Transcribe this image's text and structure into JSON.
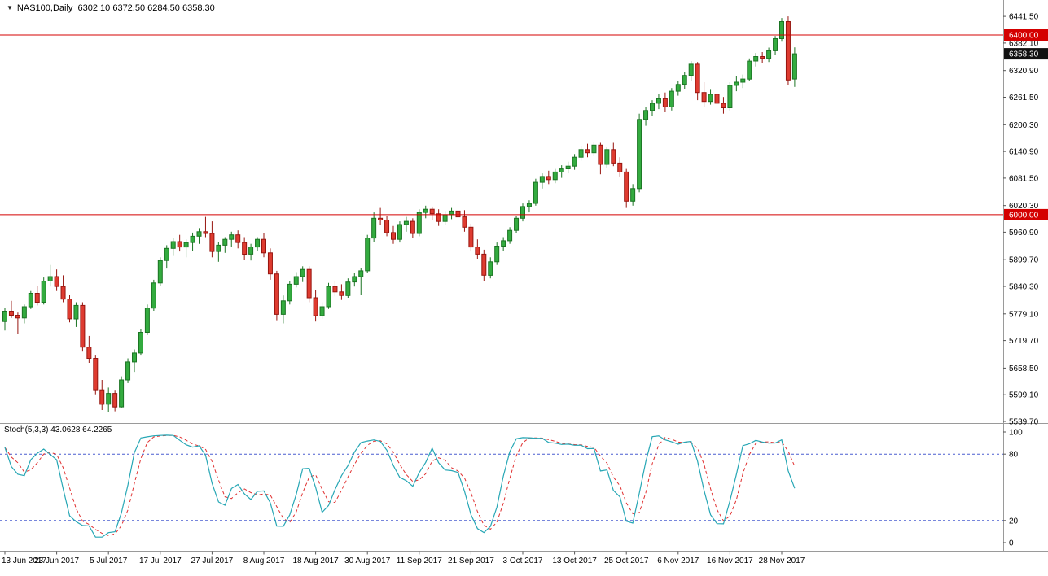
{
  "header": {
    "dropdown_icon": "▼",
    "symbol": "NAS100",
    "period": "Daily",
    "text": "NAS100,Daily  6302.10 6372.50 6284.50 6358.30",
    "open": "6302.10",
    "high": "6372.50",
    "low": "6284.50",
    "close": "6358.30"
  },
  "indicator": {
    "label": "Stoch(5,3,3) 43.0628 64.2265",
    "name": "Stoch",
    "params": "5,3,3",
    "k_value": "43.0628",
    "d_value": "64.2265",
    "range": [
      0,
      100
    ],
    "levels": [
      80,
      20
    ],
    "scale": [
      {
        "v": 100,
        "label": "100"
      },
      {
        "v": 80,
        "label": "80"
      },
      {
        "v": 20,
        "label": "20"
      },
      {
        "v": 0,
        "label": "0"
      }
    ]
  },
  "chart_data": {
    "type": "candlestick",
    "title": "NAS100,Daily  6302.10 6372.50 6284.50 6358.30",
    "symbol": "NAS100",
    "timeframe": "Daily",
    "ylim": [
      5536,
      6449
    ],
    "grid": false,
    "hlines": [
      {
        "price": 6400.0,
        "label": "6400.00"
      },
      {
        "price": 6000.0,
        "label": "6000.00"
      }
    ],
    "y_axis": {
      "ticks": [
        {
          "price": 6441.5,
          "label": "6441.50"
        },
        {
          "price": 6382.1,
          "label": "6382.10"
        },
        {
          "price": 6320.9,
          "label": "6320.90"
        },
        {
          "price": 6261.5,
          "label": "6261.50"
        },
        {
          "price": 6200.3,
          "label": "6200.30"
        },
        {
          "price": 6140.9,
          "label": "6140.90"
        },
        {
          "price": 6081.5,
          "label": "6081.50"
        },
        {
          "price": 6020.3,
          "label": "6020.30"
        },
        {
          "price": 5960.9,
          "label": "5960.90"
        },
        {
          "price": 5899.7,
          "label": "5899.70"
        },
        {
          "price": 5840.3,
          "label": "5840.30"
        },
        {
          "price": 5779.1,
          "label": "5779.10"
        },
        {
          "price": 5719.7,
          "label": "5719.70"
        },
        {
          "price": 5658.5,
          "label": "5658.50"
        },
        {
          "price": 5599.1,
          "label": "5599.10"
        },
        {
          "price": 5539.7,
          "label": "5539.70"
        }
      ],
      "badges": [
        {
          "price": 6400.0,
          "label": "6400.00",
          "style": "level"
        },
        {
          "price": 6358.3,
          "label": "6358.30",
          "style": "current"
        },
        {
          "price": 6000.0,
          "label": "6000.00",
          "style": "level"
        }
      ]
    },
    "x_labels": [
      [
        0,
        "13 Jun 2017"
      ],
      [
        8,
        "23 Jun 2017"
      ],
      [
        16,
        "5 Jul 2017"
      ],
      [
        24,
        "17 Jul 2017"
      ],
      [
        32,
        "27 Jul 2017"
      ],
      [
        40,
        "8 Aug 2017"
      ],
      [
        48,
        "18 Aug 2017"
      ],
      [
        56,
        "30 Aug 2017"
      ],
      [
        64,
        "11 Sep 2017"
      ],
      [
        72,
        "21 Sep 2017"
      ],
      [
        80,
        "3 Oct 2017"
      ],
      [
        88,
        "13 Oct 2017"
      ],
      [
        96,
        "25 Oct 2017"
      ],
      [
        104,
        "6 Nov 2017"
      ],
      [
        112,
        "16 Nov 2017"
      ],
      [
        120,
        "28 Nov 2017"
      ]
    ],
    "candles": [
      [
        5762,
        5792,
        5742,
        5785
      ],
      [
        5785,
        5808,
        5770,
        5776
      ],
      [
        5776,
        5782,
        5735,
        5770
      ],
      [
        5770,
        5800,
        5758,
        5795
      ],
      [
        5795,
        5830,
        5790,
        5825
      ],
      [
        5825,
        5842,
        5798,
        5805
      ],
      [
        5805,
        5860,
        5800,
        5852
      ],
      [
        5852,
        5888,
        5840,
        5862
      ],
      [
        5862,
        5878,
        5830,
        5840
      ],
      [
        5840,
        5865,
        5805,
        5812
      ],
      [
        5812,
        5822,
        5760,
        5768
      ],
      [
        5768,
        5805,
        5750,
        5798
      ],
      [
        5798,
        5805,
        5695,
        5705
      ],
      [
        5705,
        5730,
        5670,
        5680
      ],
      [
        5680,
        5688,
        5600,
        5610
      ],
      [
        5610,
        5632,
        5565,
        5578
      ],
      [
        5578,
        5615,
        5560,
        5602
      ],
      [
        5602,
        5610,
        5562,
        5572
      ],
      [
        5572,
        5640,
        5570,
        5632
      ],
      [
        5632,
        5680,
        5625,
        5672
      ],
      [
        5672,
        5700,
        5650,
        5692
      ],
      [
        5692,
        5745,
        5688,
        5738
      ],
      [
        5738,
        5800,
        5732,
        5792
      ],
      [
        5792,
        5855,
        5786,
        5848
      ],
      [
        5848,
        5905,
        5842,
        5898
      ],
      [
        5898,
        5932,
        5880,
        5925
      ],
      [
        5925,
        5948,
        5908,
        5940
      ],
      [
        5940,
        5955,
        5918,
        5928
      ],
      [
        5928,
        5945,
        5905,
        5938
      ],
      [
        5938,
        5960,
        5920,
        5952
      ],
      [
        5952,
        5970,
        5935,
        5962
      ],
      [
        5962,
        5995,
        5950,
        5958
      ],
      [
        5958,
        5985,
        5905,
        5918
      ],
      [
        5918,
        5940,
        5895,
        5932
      ],
      [
        5932,
        5950,
        5915,
        5945
      ],
      [
        5945,
        5962,
        5928,
        5955
      ],
      [
        5955,
        5965,
        5925,
        5938
      ],
      [
        5938,
        5950,
        5900,
        5912
      ],
      [
        5912,
        5935,
        5898,
        5928
      ],
      [
        5928,
        5950,
        5920,
        5945
      ],
      [
        5945,
        5958,
        5905,
        5915
      ],
      [
        5915,
        5925,
        5855,
        5868
      ],
      [
        5868,
        5875,
        5765,
        5778
      ],
      [
        5778,
        5820,
        5758,
        5808
      ],
      [
        5808,
        5852,
        5800,
        5845
      ],
      [
        5845,
        5872,
        5838,
        5862
      ],
      [
        5862,
        5885,
        5850,
        5878
      ],
      [
        5878,
        5885,
        5805,
        5815
      ],
      [
        5815,
        5832,
        5762,
        5775
      ],
      [
        5775,
        5805,
        5768,
        5795
      ],
      [
        5795,
        5848,
        5790,
        5840
      ],
      [
        5840,
        5852,
        5818,
        5828
      ],
      [
        5828,
        5845,
        5810,
        5820
      ],
      [
        5820,
        5858,
        5815,
        5850
      ],
      [
        5850,
        5870,
        5840,
        5862
      ],
      [
        5862,
        5882,
        5822,
        5875
      ],
      [
        5875,
        5955,
        5870,
        5948
      ],
      [
        5948,
        6005,
        5940,
        5992
      ],
      [
        5992,
        6015,
        5978,
        5988
      ],
      [
        5988,
        5998,
        5952,
        5960
      ],
      [
        5960,
        5975,
        5935,
        5945
      ],
      [
        5945,
        5985,
        5938,
        5978
      ],
      [
        5978,
        5995,
        5962,
        5985
      ],
      [
        5985,
        5992,
        5948,
        5958
      ],
      [
        5958,
        6012,
        5952,
        6005
      ],
      [
        6005,
        6020,
        5992,
        6012
      ],
      [
        6012,
        6018,
        5988,
        6002
      ],
      [
        6002,
        6012,
        5975,
        5985
      ],
      [
        5985,
        6008,
        5978,
        6000
      ],
      [
        6000,
        6015,
        5990,
        6008
      ],
      [
        6008,
        6012,
        5985,
        5995
      ],
      [
        5995,
        6010,
        5962,
        5972
      ],
      [
        5972,
        5980,
        5918,
        5928
      ],
      [
        5928,
        5945,
        5902,
        5912
      ],
      [
        5912,
        5922,
        5852,
        5865
      ],
      [
        5865,
        5905,
        5858,
        5895
      ],
      [
        5895,
        5938,
        5888,
        5930
      ],
      [
        5930,
        5950,
        5920,
        5942
      ],
      [
        5942,
        5972,
        5935,
        5965
      ],
      [
        5965,
        5998,
        5958,
        5992
      ],
      [
        5992,
        6025,
        5985,
        6018
      ],
      [
        6018,
        6032,
        6005,
        6025
      ],
      [
        6025,
        6080,
        6020,
        6072
      ],
      [
        6072,
        6092,
        6058,
        6085
      ],
      [
        6085,
        6098,
        6068,
        6078
      ],
      [
        6078,
        6102,
        6070,
        6095
      ],
      [
        6095,
        6110,
        6082,
        6102
      ],
      [
        6102,
        6118,
        6092,
        6108
      ],
      [
        6108,
        6135,
        6100,
        6128
      ],
      [
        6128,
        6152,
        6120,
        6145
      ],
      [
        6145,
        6158,
        6128,
        6138
      ],
      [
        6138,
        6162,
        6130,
        6155
      ],
      [
        6155,
        6160,
        6090,
        6112
      ],
      [
        6112,
        6150,
        6105,
        6145
      ],
      [
        6145,
        6160,
        6108,
        6115
      ],
      [
        6115,
        6128,
        6085,
        6095
      ],
      [
        6095,
        6102,
        6015,
        6030
      ],
      [
        6030,
        6068,
        6020,
        6058
      ],
      [
        6058,
        6225,
        6050,
        6212
      ],
      [
        6212,
        6240,
        6198,
        6232
      ],
      [
        6232,
        6255,
        6220,
        6248
      ],
      [
        6248,
        6268,
        6235,
        6258
      ],
      [
        6258,
        6272,
        6228,
        6240
      ],
      [
        6240,
        6282,
        6232,
        6275
      ],
      [
        6275,
        6298,
        6265,
        6290
      ],
      [
        6290,
        6318,
        6280,
        6310
      ],
      [
        6310,
        6342,
        6298,
        6335
      ],
      [
        6335,
        6340,
        6255,
        6272
      ],
      [
        6272,
        6295,
        6240,
        6252
      ],
      [
        6252,
        6278,
        6245,
        6268
      ],
      [
        6268,
        6280,
        6235,
        6248
      ],
      [
        6248,
        6262,
        6225,
        6238
      ],
      [
        6238,
        6295,
        6232,
        6288
      ],
      [
        6288,
        6308,
        6275,
        6295
      ],
      [
        6295,
        6312,
        6282,
        6302
      ],
      [
        6302,
        6348,
        6298,
        6342
      ],
      [
        6342,
        6360,
        6330,
        6352
      ],
      [
        6352,
        6362,
        6338,
        6348
      ],
      [
        6348,
        6372,
        6340,
        6365
      ],
      [
        6365,
        6398,
        6355,
        6392
      ],
      [
        6392,
        6438,
        6385,
        6430
      ],
      [
        6430,
        6441.5,
        6288,
        6300
      ],
      [
        6302.1,
        6372.5,
        6284.5,
        6358.3
      ]
    ],
    "style": {
      "bull": "#33ab3f",
      "bull_border": "#1b7423",
      "bear": "#de3b30",
      "bear_border": "#97150f",
      "k_line": "#27a7b5",
      "d_line": "#e03030",
      "level_line": "#4a5fd0",
      "hline": "#d40000",
      "separator": "#9a9a9a",
      "badge_current_bg": "#111111",
      "badge_level_bg": "#d40000",
      "badge_text": "#ffffff"
    }
  }
}
